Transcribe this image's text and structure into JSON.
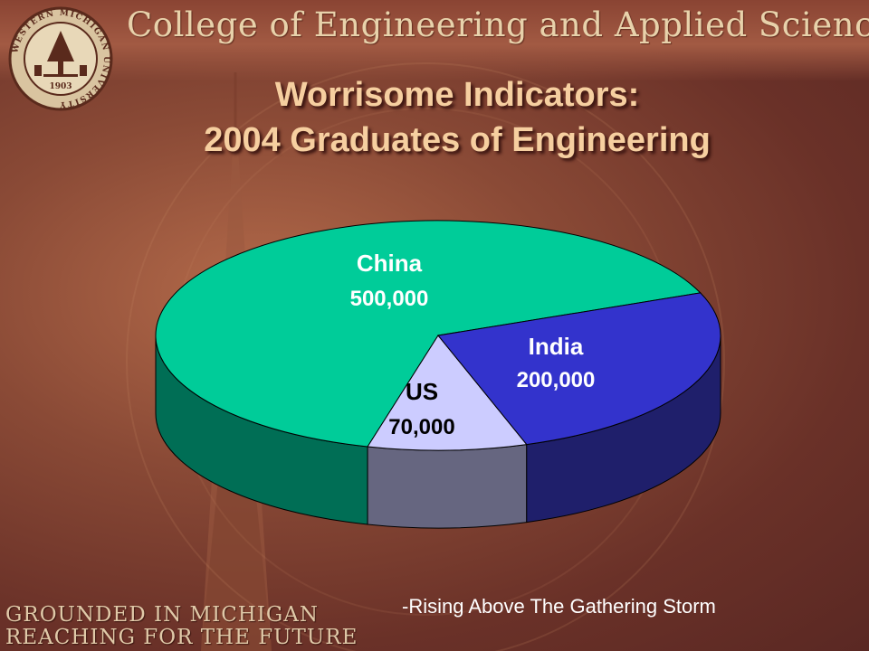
{
  "header": {
    "college_title": "College of Engineering and Applied Sciences"
  },
  "seal": {
    "ring_text": "WESTERN MICHIGAN UNIVERSITY",
    "year": "1903"
  },
  "title": {
    "line1": "Worrisome Indicators:",
    "line2": "2004 Graduates of Engineering"
  },
  "chart_data": {
    "type": "pie",
    "style": "3d",
    "title": "Worrisome Indicators: 2004 Graduates of Engineering",
    "slices": [
      {
        "label": "China",
        "value": 500000,
        "display": "500,000",
        "color": "#00cc99",
        "side_color": "#006e55"
      },
      {
        "label": "India",
        "value": 200000,
        "display": "200,000",
        "color": "#3333cc",
        "side_color": "#1f1f6b"
      },
      {
        "label": "US",
        "value": 70000,
        "display": "70,000",
        "color": "#ccccff",
        "side_color": "#666680"
      }
    ]
  },
  "source_note": "-Rising Above The Gathering Storm",
  "footer": {
    "line1": "GROUNDED IN MICHIGAN",
    "line2": "REACHING FOR THE FUTURE"
  }
}
